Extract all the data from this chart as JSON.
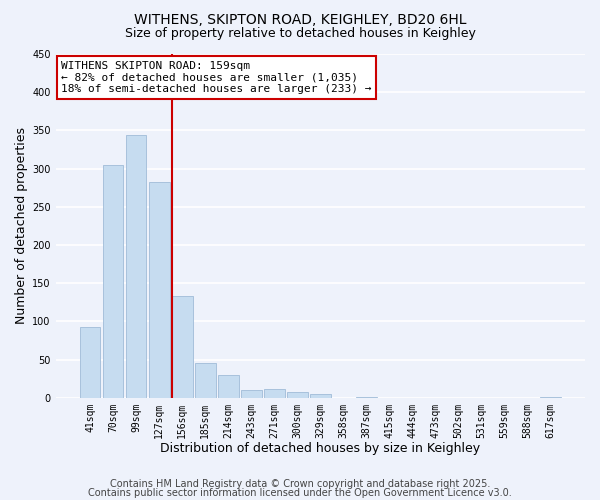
{
  "title_line1": "WITHENS, SKIPTON ROAD, KEIGHLEY, BD20 6HL",
  "title_line2": "Size of property relative to detached houses in Keighley",
  "xlabel": "Distribution of detached houses by size in Keighley",
  "ylabel": "Number of detached properties",
  "bar_color": "#c6dcf0",
  "bar_edgecolor": "#a0bcd8",
  "bin_labels": [
    "41sqm",
    "70sqm",
    "99sqm",
    "127sqm",
    "156sqm",
    "185sqm",
    "214sqm",
    "243sqm",
    "271sqm",
    "300sqm",
    "329sqm",
    "358sqm",
    "387sqm",
    "415sqm",
    "444sqm",
    "473sqm",
    "502sqm",
    "531sqm",
    "559sqm",
    "588sqm",
    "617sqm"
  ],
  "bar_heights": [
    93,
    305,
    344,
    283,
    133,
    46,
    30,
    10,
    12,
    7,
    5,
    0,
    1,
    0,
    0,
    0,
    0,
    0,
    0,
    0,
    1
  ],
  "red_line_index": 4,
  "ylim": [
    0,
    450
  ],
  "yticks": [
    0,
    50,
    100,
    150,
    200,
    250,
    300,
    350,
    400,
    450
  ],
  "annotation_line1": "WITHENS SKIPTON ROAD: 159sqm",
  "annotation_line2": "← 82% of detached houses are smaller (1,035)",
  "annotation_line3": "18% of semi-detached houses are larger (233) →",
  "annotation_box_color": "#ffffff",
  "annotation_box_edgecolor": "#cc0000",
  "footer_line1": "Contains HM Land Registry data © Crown copyright and database right 2025.",
  "footer_line2": "Contains public sector information licensed under the Open Government Licence v3.0.",
  "background_color": "#eef2fb",
  "grid_color": "#ffffff",
  "title_fontsize": 10,
  "subtitle_fontsize": 9,
  "axis_label_fontsize": 9,
  "tick_fontsize": 7,
  "annotation_fontsize": 8,
  "footer_fontsize": 7
}
